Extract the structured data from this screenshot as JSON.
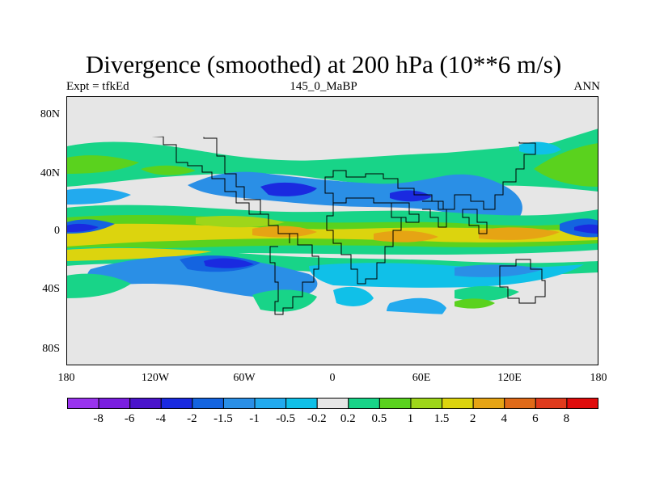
{
  "title": "Divergence (smoothed) at 200 hPa (10**6 m/s)",
  "subtitle_left": "Expt = tfkEd",
  "subtitle_center": "145_0_MaBP",
  "subtitle_right": "ANN",
  "lat_ticks": [
    "80N",
    "40N",
    "0",
    "40S",
    "80S"
  ],
  "lon_ticks": [
    "180",
    "120W",
    "60W",
    "0",
    "60E",
    "120E",
    "180"
  ],
  "colorbar": {
    "labels": [
      "-8",
      "-6",
      "-4",
      "-2",
      "-1.5",
      "-1",
      "-0.5",
      "-0.2",
      "0.2",
      "0.5",
      "1",
      "1.5",
      "2",
      "4",
      "6",
      "8"
    ],
    "colors": [
      "#9933ee",
      "#7a1ee0",
      "#4a14cc",
      "#1a2ae0",
      "#1464e0",
      "#2a8fe6",
      "#22aaee",
      "#10c0e8",
      "#e6e6e6",
      "#18d488",
      "#5ad21e",
      "#9ed61a",
      "#dcd40e",
      "#e6a414",
      "#e06a18",
      "#e03a1c",
      "#e00c0c"
    ]
  },
  "colors": {
    "land_background": "#e6e6e6",
    "coastline": "#000000"
  }
}
